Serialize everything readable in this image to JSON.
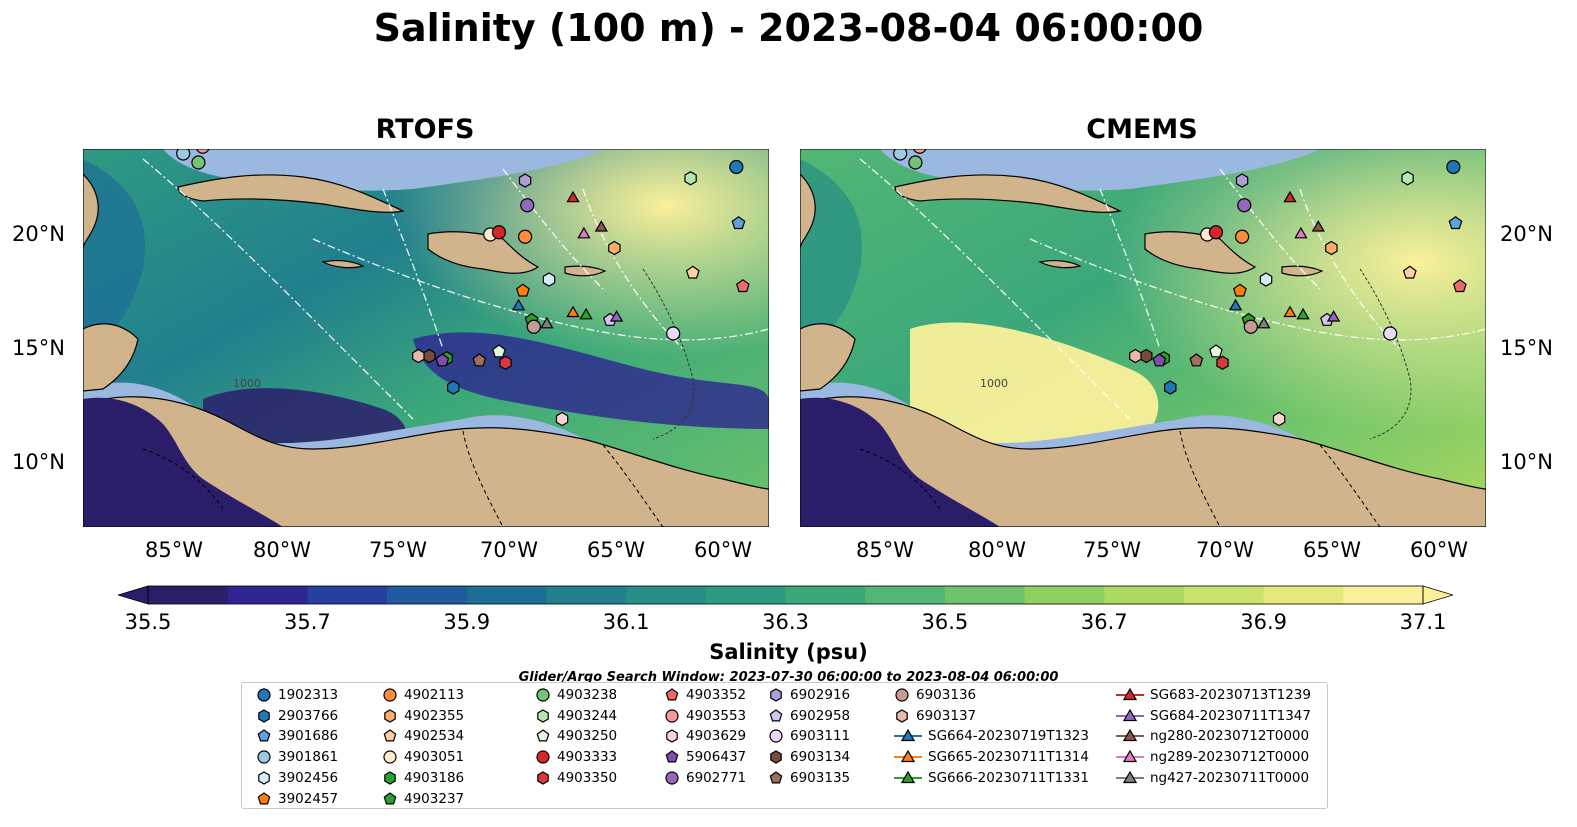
{
  "title": "Salinity (100 m) - 2023-08-04 06:00:00",
  "panels": [
    {
      "title": "RTOFS"
    },
    {
      "title": "CMEMS"
    }
  ],
  "lon_ticks": [
    "85°W",
    "80°W",
    "75°W",
    "70°W",
    "65°W",
    "60°W"
  ],
  "lat_ticks": [
    "20°N",
    "15°N",
    "10°N"
  ],
  "contour_labels": [
    "1000",
    "1000"
  ],
  "colorbar": {
    "title": "Salinity (psu)",
    "range": [
      35.5,
      37.1
    ],
    "tick_labels": [
      "35.5",
      "35.7",
      "35.9",
      "36.1",
      "36.3",
      "36.5",
      "36.7",
      "36.9",
      "37.1"
    ],
    "colors": [
      "#2c1d6b",
      "#2e2590",
      "#273fa0",
      "#215aa0",
      "#1d6e96",
      "#217f8e",
      "#278d86",
      "#2f9a82",
      "#3ca87a",
      "#52b674",
      "#6cc36b",
      "#8ed160",
      "#acd95f",
      "#c9e26a",
      "#e6e87c",
      "#faf09a"
    ]
  },
  "search_window": "Glider/Argo Search Window: 2023-07-30 06:00:00 to 2023-08-04 06:00:00",
  "colors": {
    "land": "#d2b48c",
    "shelf": "#9bb8e0",
    "coast": "#000000"
  },
  "legend": [
    {
      "name": "1902313",
      "marker": "circle",
      "color": "#1f77b4"
    },
    {
      "name": "2903766",
      "marker": "hexagon",
      "color": "#1f77b4"
    },
    {
      "name": "3901686",
      "marker": "pentagon",
      "color": "#5fa2dd"
    },
    {
      "name": "3901861",
      "marker": "circle",
      "color": "#9ecae1"
    },
    {
      "name": "3902456",
      "marker": "hexagon",
      "color": "#d6ecfa"
    },
    {
      "name": "3902457",
      "marker": "pentagon",
      "color": "#ff7f0e"
    },
    {
      "name": "4902113",
      "marker": "circle",
      "color": "#fd8d3c"
    },
    {
      "name": "4902355",
      "marker": "hexagon",
      "color": "#fdae6b"
    },
    {
      "name": "4902534",
      "marker": "pentagon",
      "color": "#fdd0a2"
    },
    {
      "name": "4903051",
      "marker": "circle",
      "color": "#feebd2"
    },
    {
      "name": "4903186",
      "marker": "hexagon",
      "color": "#2ca02c"
    },
    {
      "name": "4903237",
      "marker": "pentagon",
      "color": "#2ca02c"
    },
    {
      "name": "4903238",
      "marker": "circle",
      "color": "#74c476"
    },
    {
      "name": "4903244",
      "marker": "hexagon",
      "color": "#b6e7b0"
    },
    {
      "name": "4903250",
      "marker": "pentagon",
      "color": "#e3f7da"
    },
    {
      "name": "4903333",
      "marker": "circle",
      "color": "#d62728"
    },
    {
      "name": "4903350",
      "marker": "hexagon",
      "color": "#d9393a"
    },
    {
      "name": "4903352",
      "marker": "pentagon",
      "color": "#ef6b6b"
    },
    {
      "name": "4903553",
      "marker": "circle",
      "color": "#f59a9a"
    },
    {
      "name": "4903629",
      "marker": "hexagon",
      "color": "#fcd3d3"
    },
    {
      "name": "5906437",
      "marker": "pentagon",
      "color": "#7b4fae"
    },
    {
      "name": "6902771",
      "marker": "circle",
      "color": "#9467bd"
    },
    {
      "name": "6902916",
      "marker": "hexagon",
      "color": "#b19cd9"
    },
    {
      "name": "6902958",
      "marker": "pentagon",
      "color": "#d4c4ef"
    },
    {
      "name": "6903111",
      "marker": "circle",
      "color": "#ead9f7"
    },
    {
      "name": "6903134",
      "marker": "hexagon",
      "color": "#7a4a3a"
    },
    {
      "name": "6903135",
      "marker": "pentagon",
      "color": "#a0705f"
    },
    {
      "name": "6903136",
      "marker": "circle",
      "color": "#c49c94"
    },
    {
      "name": "6903137",
      "marker": "hexagon",
      "color": "#e8b9ac"
    },
    {
      "name": "SG664-20230719T1323",
      "marker": "triangle-line",
      "color": "#1f77b4"
    },
    {
      "name": "SG665-20230711T1314",
      "marker": "triangle-line",
      "color": "#ff7f0e"
    },
    {
      "name": "SG666-20230711T1331",
      "marker": "triangle-line",
      "color": "#2ca02c"
    },
    {
      "name": "SG683-20230713T1239",
      "marker": "triangle-line",
      "color": "#d62728"
    },
    {
      "name": "SG684-20230711T1347",
      "marker": "triangle-line",
      "color": "#9467bd"
    },
    {
      "name": "ng280-20230712T0000",
      "marker": "triangle-line",
      "color": "#8c564b"
    },
    {
      "name": "ng289-20230712T0000",
      "marker": "triangle-line",
      "color": "#e377c2"
    },
    {
      "name": "ng427-20230711T0000",
      "marker": "triangle-line",
      "color": "#7f7f7f"
    }
  ],
  "observations": [
    {
      "name": "1902313",
      "lon": -59.5,
      "lat": 23.0
    },
    {
      "name": "2903766",
      "lon": -72.5,
      "lat": 13.2
    },
    {
      "name": "3901686",
      "lon": -59.4,
      "lat": 20.5
    },
    {
      "name": "3901861",
      "lon": -84.9,
      "lat": 23.6
    },
    {
      "name": "3902456",
      "lon": -68.1,
      "lat": 18.0
    },
    {
      "name": "3902457",
      "lon": -69.3,
      "lat": 17.5
    },
    {
      "name": "4902113",
      "lon": -69.2,
      "lat": 19.9
    },
    {
      "name": "4902355",
      "lon": -65.1,
      "lat": 19.4
    },
    {
      "name": "4902534",
      "lon": -61.5,
      "lat": 18.3
    },
    {
      "name": "4903051",
      "lon": -70.8,
      "lat": 20.0
    },
    {
      "name": "4903186",
      "lon": -72.8,
      "lat": 14.5
    },
    {
      "name": "4903237",
      "lon": -68.9,
      "lat": 16.2
    },
    {
      "name": "4903238",
      "lon": -84.2,
      "lat": 23.2
    },
    {
      "name": "4903244",
      "lon": -61.6,
      "lat": 22.5
    },
    {
      "name": "4903250",
      "lon": -70.4,
      "lat": 14.8
    },
    {
      "name": "4903333",
      "lon": -70.4,
      "lat": 20.1
    },
    {
      "name": "4903350",
      "lon": -70.1,
      "lat": 14.3
    },
    {
      "name": "4903352",
      "lon": -59.2,
      "lat": 17.7
    },
    {
      "name": "4903553",
      "lon": -84.0,
      "lat": 23.9
    },
    {
      "name": "4903629",
      "lon": -67.5,
      "lat": 11.8
    },
    {
      "name": "5906437",
      "lon": -73.0,
      "lat": 14.4
    },
    {
      "name": "6902771",
      "lon": -69.1,
      "lat": 21.3
    },
    {
      "name": "6902916",
      "lon": -69.2,
      "lat": 22.4
    },
    {
      "name": "6902958",
      "lon": -65.3,
      "lat": 16.2
    },
    {
      "name": "6903111",
      "lon": -62.4,
      "lat": 15.6
    },
    {
      "name": "6903134",
      "lon": -73.6,
      "lat": 14.6
    },
    {
      "name": "6903135",
      "lon": -71.3,
      "lat": 14.4
    },
    {
      "name": "6903136",
      "lon": -68.8,
      "lat": 15.9
    },
    {
      "name": "6903137",
      "lon": -74.1,
      "lat": 14.6
    },
    {
      "name": "SG664-20230719T1323",
      "lon": -69.5,
      "lat": 16.8
    },
    {
      "name": "SG665-20230711T1314",
      "lon": -67.0,
      "lat": 16.5
    },
    {
      "name": "SG666-20230711T1331",
      "lon": -66.4,
      "lat": 16.4
    },
    {
      "name": "SG683-20230713T1239",
      "lon": -67.0,
      "lat": 21.6
    },
    {
      "name": "SG684-20230711T1347",
      "lon": -65.0,
      "lat": 16.3
    },
    {
      "name": "ng280-20230712T0000",
      "lon": -65.7,
      "lat": 20.3
    },
    {
      "name": "ng289-20230712T0000",
      "lon": -66.5,
      "lat": 20.0
    },
    {
      "name": "ng427-20230711T0000",
      "lon": -68.2,
      "lat": 16.0
    }
  ]
}
